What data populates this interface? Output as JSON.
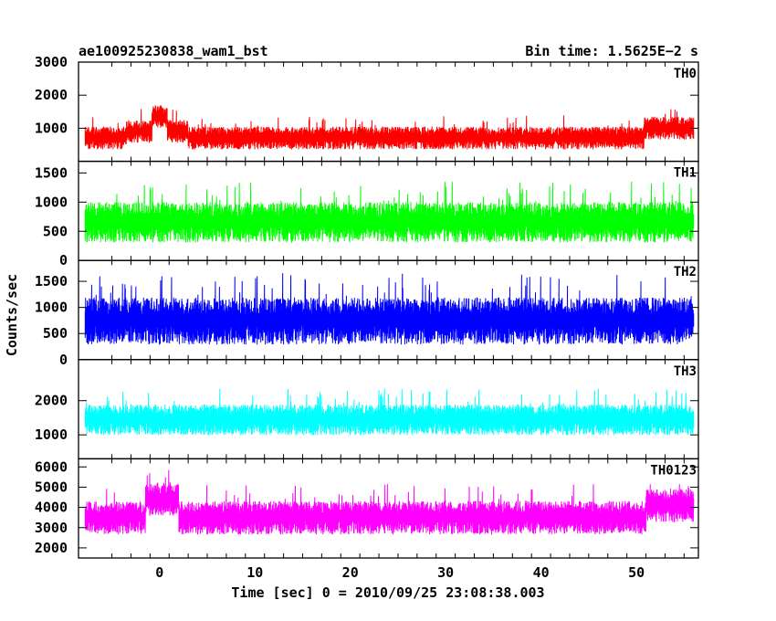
{
  "header": {
    "title": "ae100925230838_wam1_bst",
    "bin_time": "Bin time: 1.5625E−2 s"
  },
  "chart_data": {
    "type": "line",
    "xlabel": "Time [sec] 0 = 2010/09/25 23:08:38.003",
    "ylabel": "Counts/sec",
    "xlim": [
      -8.5,
      56.5
    ],
    "xticks": [
      0,
      10,
      20,
      30,
      40,
      50
    ],
    "x_range_data": [
      -7.8,
      56.0
    ],
    "panels": [
      {
        "name": "TH0",
        "color": "#ff0000",
        "ylim": [
          0,
          3000
        ],
        "yticks": [
          1000,
          2000,
          3000
        ],
        "baseline": 750,
        "floor": 250,
        "spread": 230,
        "spike": 0.04,
        "features": [
          {
            "x": [
              -0.8,
              0.8
            ],
            "baseline": 1400
          },
          {
            "x": [
              -3.5,
              3.0
            ],
            "baseline": 950
          },
          {
            "x": [
              50.8,
              56.0
            ],
            "baseline": 1050
          }
        ]
      },
      {
        "name": "TH1",
        "color": "#00ff00",
        "ylim": [
          0,
          1700
        ],
        "yticks": [
          0,
          500,
          1000,
          1500
        ],
        "baseline": 700,
        "floor": 150,
        "spread": 230,
        "spike": 0.06,
        "features": []
      },
      {
        "name": "TH2",
        "color": "#0000ff",
        "ylim": [
          0,
          1900
        ],
        "yticks": [
          0,
          500,
          1000,
          1500
        ],
        "baseline": 800,
        "floor": 150,
        "spread": 300,
        "spike": 0.07,
        "features": []
      },
      {
        "name": "TH3",
        "color": "#00ffff",
        "ylim": [
          300,
          3200
        ],
        "yticks": [
          1000,
          2000
        ],
        "baseline": 1500,
        "floor": 500,
        "spread": 300,
        "spike": 0.05,
        "features": []
      },
      {
        "name": "TH0123",
        "color": "#ff00ff",
        "ylim": [
          1500,
          6400
        ],
        "yticks": [
          2000,
          3000,
          4000,
          5000,
          6000
        ],
        "baseline": 3600,
        "floor": 2000,
        "spread": 550,
        "spike": 0.05,
        "features": [
          {
            "x": [
              -1.5,
              2.0
            ],
            "baseline": 4500
          },
          {
            "x": [
              51.0,
              56.0
            ],
            "baseline": 4200
          }
        ]
      }
    ]
  }
}
